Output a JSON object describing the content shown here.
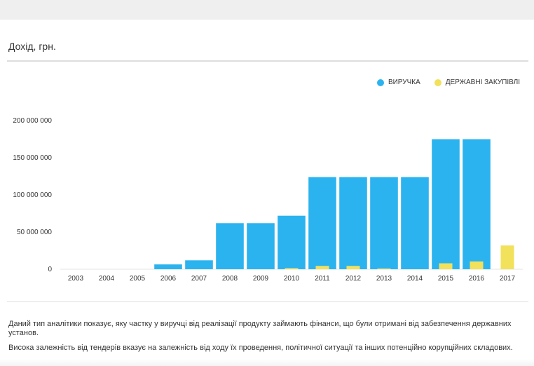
{
  "header": {
    "title": "Дохід, грн."
  },
  "legend": {
    "revenue": {
      "label": "ВИРУЧКА",
      "color": "#2bb3ef"
    },
    "procurement": {
      "label": "ДЕРЖАВНІ ЗАКУПІВЛІ",
      "color": "#f2e15a"
    }
  },
  "chart_data": {
    "type": "bar",
    "title": "Дохід, грн.",
    "categories": [
      "2003",
      "2004",
      "2005",
      "2006",
      "2007",
      "2008",
      "2009",
      "2010",
      "2011",
      "2012",
      "2013",
      "2014",
      "2015",
      "2016",
      "2017"
    ],
    "series": [
      {
        "name": "ВИРУЧКА",
        "color": "#2bb3ef",
        "values": [
          0,
          0,
          0,
          6500000,
          12000000,
          62000000,
          62000000,
          72000000,
          124000000,
          124000000,
          124000000,
          124000000,
          175000000,
          175000000,
          0
        ]
      },
      {
        "name": "ДЕРЖАВНІ ЗАКУПІВЛІ",
        "color": "#f2e15a",
        "values": [
          0,
          0,
          0,
          0,
          0,
          0,
          0,
          1500000,
          4500000,
          4500000,
          1000000,
          0,
          8000000,
          10500000,
          32000000
        ]
      }
    ],
    "ylim": [
      0,
      200000000
    ],
    "yticks": [
      0,
      50000000,
      100000000,
      150000000,
      200000000
    ],
    "ytick_labels": [
      "0",
      "50 000 000",
      "100 000 000",
      "150 000 000",
      "200 000 000"
    ],
    "xlabel": "",
    "ylabel": "",
    "grid": false,
    "legend_position": "top-right"
  },
  "notes": {
    "p1": "Даний тип аналітики показує, яку частку у виручці від реалізації продукту займають фінанси, що були отримані від забезпечення державних установ.",
    "p2": "Висока залежність від тендерів вказує на залежність від ходу їх проведення, політичної ситуації та інших потенційно корупційних складових."
  }
}
